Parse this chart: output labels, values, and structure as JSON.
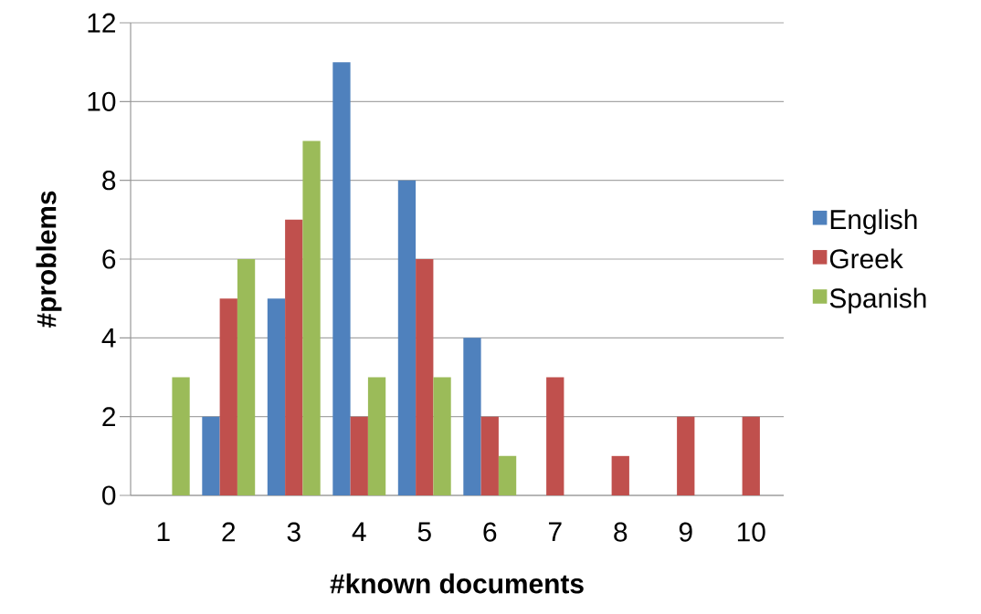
{
  "chart_data": {
    "type": "bar",
    "xlabel": "#known documents",
    "ylabel": "#problems",
    "categories": [
      "1",
      "2",
      "3",
      "4",
      "5",
      "6",
      "7",
      "8",
      "9",
      "10"
    ],
    "series": [
      {
        "name": "English",
        "color": "#4f81bd",
        "values": [
          0,
          2,
          5,
          11,
          8,
          4,
          0,
          0,
          0,
          0
        ]
      },
      {
        "name": "Greek",
        "color": "#c0504d",
        "values": [
          0,
          5,
          7,
          2,
          6,
          2,
          3,
          1,
          2,
          2
        ]
      },
      {
        "name": "Spanish",
        "color": "#9bbb59",
        "values": [
          3,
          6,
          9,
          3,
          3,
          1,
          0,
          0,
          0,
          0
        ]
      }
    ],
    "ylim": [
      0,
      12
    ],
    "yticks": [
      0,
      2,
      4,
      6,
      8,
      10,
      12
    ],
    "grid": "y",
    "legend": "right"
  }
}
